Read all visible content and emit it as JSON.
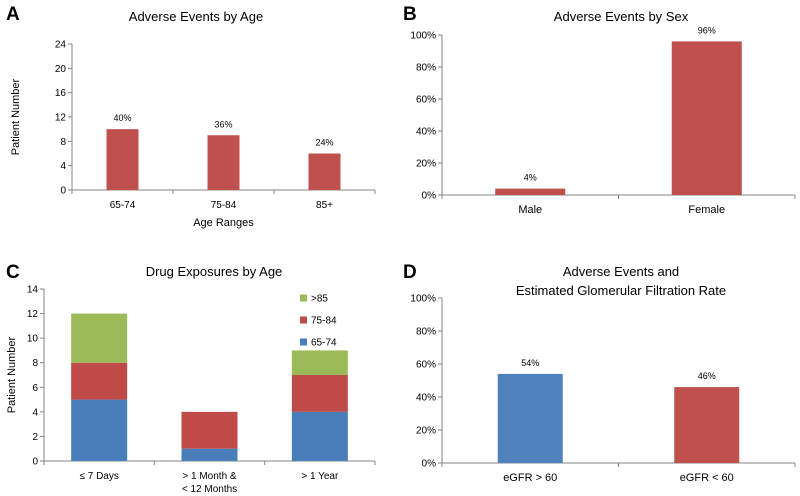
{
  "panels": {
    "a": "A",
    "b": "B",
    "c": "C",
    "d": "D"
  },
  "chart_data": [
    {
      "id": "a",
      "type": "bar",
      "title": "Adverse Events by Age",
      "xlabel": "Age Ranges",
      "ylabel": "Patient Number",
      "categories": [
        "65-74",
        "75-84",
        "85+"
      ],
      "values": [
        10,
        9,
        6
      ],
      "data_labels": [
        "40%",
        "36%",
        "24%"
      ],
      "ylim": [
        0,
        24
      ],
      "yticks": [
        0,
        4,
        8,
        12,
        16,
        20,
        24
      ],
      "ytick_labels": [
        "0",
        "4",
        "8",
        "12",
        "16",
        "20",
        "24"
      ],
      "colors": [
        "#c0504d"
      ]
    },
    {
      "id": "b",
      "type": "bar",
      "title": "Adverse Events by Sex",
      "xlabel": "",
      "ylabel": "",
      "categories": [
        "Male",
        "Female"
      ],
      "values": [
        4,
        96
      ],
      "data_labels": [
        "4%",
        "96%"
      ],
      "ylim": [
        0,
        100
      ],
      "yticks": [
        0,
        20,
        40,
        60,
        80,
        100
      ],
      "ytick_labels": [
        "0%",
        "20%",
        "40%",
        "60%",
        "80%",
        "100%"
      ],
      "colors": [
        "#c0504d"
      ]
    },
    {
      "id": "c",
      "type": "bar",
      "stacked": true,
      "title": "Drug Exposures by Age",
      "xlabel": "",
      "ylabel": "Patient Number",
      "categories": [
        [
          "≤ 7 Days"
        ],
        [
          "> 1 Month &",
          "< 12 Months"
        ],
        [
          "> 1 Year"
        ]
      ],
      "series": [
        {
          "name": "65-74",
          "values": [
            5,
            1,
            4
          ],
          "color": "#4a7ebb"
        },
        {
          "name": "75-84",
          "values": [
            3,
            3,
            3
          ],
          "color": "#be4b48"
        },
        {
          "name": ">85",
          "values": [
            4,
            0,
            2
          ],
          "color": "#9bbb59"
        }
      ],
      "legend_order": [
        ">85",
        "75-84",
        "65-74"
      ],
      "legend_position": "top-right",
      "ylim": [
        0,
        14
      ],
      "yticks": [
        0,
        2,
        4,
        6,
        8,
        10,
        12,
        14
      ],
      "ytick_labels": [
        "0",
        "2",
        "4",
        "6",
        "8",
        "10",
        "12",
        "14"
      ]
    },
    {
      "id": "d",
      "type": "bar",
      "title": [
        "Adverse Events and",
        "Estimated Glomerular Filtration Rate"
      ],
      "xlabel": "",
      "ylabel": "",
      "categories": [
        "eGFR > 60",
        "eGFR < 60"
      ],
      "values": [
        54,
        46
      ],
      "data_labels": [
        "54%",
        "46%"
      ],
      "ylim": [
        0,
        100
      ],
      "yticks": [
        0,
        20,
        40,
        60,
        80,
        100
      ],
      "ytick_labels": [
        "0%",
        "20%",
        "40%",
        "60%",
        "80%",
        "100%"
      ],
      "colors": [
        "#4f81bd",
        "#c0504d"
      ]
    }
  ]
}
